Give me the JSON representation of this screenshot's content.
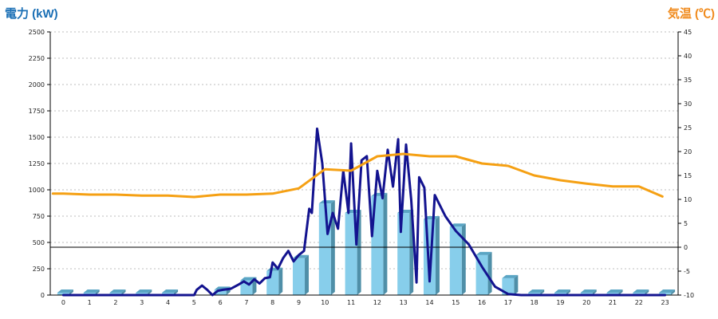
{
  "chart_data": {
    "type": "bar+line",
    "left_axis_title": "電力 (kW)",
    "right_axis_title": "気温 (℃)",
    "left_axis_color": "#1a6fb5",
    "right_axis_color": "#f08a1c",
    "ylim_left": [
      0,
      2500
    ],
    "ylim_right": [
      -10,
      45
    ],
    "yticks_left": [
      "0",
      "250",
      "500",
      "750",
      "1000",
      "1250",
      "1500",
      "1750",
      "2000",
      "2250",
      "2500"
    ],
    "yticks_right": [
      "-10",
      "-5",
      "0",
      "5",
      "10",
      "15",
      "20",
      "25",
      "30",
      "35",
      "40",
      "45"
    ],
    "categories": [
      "0",
      "1",
      "2",
      "3",
      "4",
      "5",
      "6",
      "7",
      "8",
      "9",
      "10",
      "11",
      "12",
      "13",
      "14",
      "15",
      "16",
      "17",
      "18",
      "19",
      "20",
      "21",
      "22",
      "23"
    ],
    "grid": "horizontal dotted",
    "series": [
      {
        "kind": "bar",
        "axis": "left",
        "color": "#87ceeb",
        "values": [
          20,
          20,
          20,
          20,
          20,
          0,
          50,
          140,
          230,
          350,
          870,
          780,
          940,
          780,
          720,
          650,
          380,
          160,
          20,
          20,
          20,
          20,
          20,
          20
        ]
      },
      {
        "kind": "line",
        "axis": "left",
        "color": "#13138f",
        "x": [
          0,
          1,
          2,
          3,
          4,
          5,
          5.1,
          5.3,
          5.5,
          5.7,
          5.9,
          6.1,
          6.4,
          6.7,
          6.9,
          7.1,
          7.3,
          7.5,
          7.7,
          7.9,
          8.0,
          8.2,
          8.4,
          8.6,
          8.8,
          9.0,
          9.2,
          9.4,
          9.5,
          9.7,
          9.9,
          10.1,
          10.3,
          10.5,
          10.7,
          10.9,
          11.0,
          11.2,
          11.4,
          11.6,
          11.8,
          12.0,
          12.2,
          12.4,
          12.6,
          12.8,
          12.9,
          13.1,
          13.3,
          13.5,
          13.6,
          13.8,
          14.0,
          14.2,
          14.4,
          14.6,
          14.8,
          15.0,
          15.5,
          16.0,
          16.5,
          17.0,
          17.5,
          18.0,
          19,
          20,
          21,
          22,
          23
        ],
        "values": [
          0,
          0,
          0,
          0,
          0,
          0,
          50,
          90,
          50,
          0,
          40,
          50,
          60,
          100,
          130,
          100,
          150,
          110,
          160,
          170,
          310,
          250,
          350,
          420,
          320,
          380,
          420,
          820,
          780,
          1580,
          1250,
          580,
          780,
          630,
          1180,
          780,
          1440,
          480,
          1280,
          1320,
          560,
          1180,
          920,
          1380,
          1030,
          1480,
          600,
          1430,
          900,
          120,
          1120,
          1020,
          130,
          950,
          850,
          750,
          680,
          610,
          480,
          270,
          80,
          10,
          0,
          0,
          0,
          0,
          0,
          0,
          0
        ]
      },
      {
        "kind": "line",
        "axis": "right",
        "color": "#f5a013",
        "x": [
          -0.4,
          0,
          1,
          2,
          3,
          4,
          5,
          6,
          7,
          8,
          9,
          10,
          11,
          12,
          13,
          14,
          15,
          16,
          17,
          18,
          19,
          20,
          21,
          22,
          22.9
        ],
        "values": [
          11.2,
          11.2,
          11.0,
          11.0,
          10.8,
          10.8,
          10.5,
          11.0,
          11.0,
          11.2,
          12.3,
          16.3,
          16.0,
          19.0,
          19.5,
          19.0,
          19.0,
          17.5,
          17.0,
          15.0,
          14.0,
          13.3,
          12.7,
          12.7,
          10.6
        ]
      }
    ]
  }
}
